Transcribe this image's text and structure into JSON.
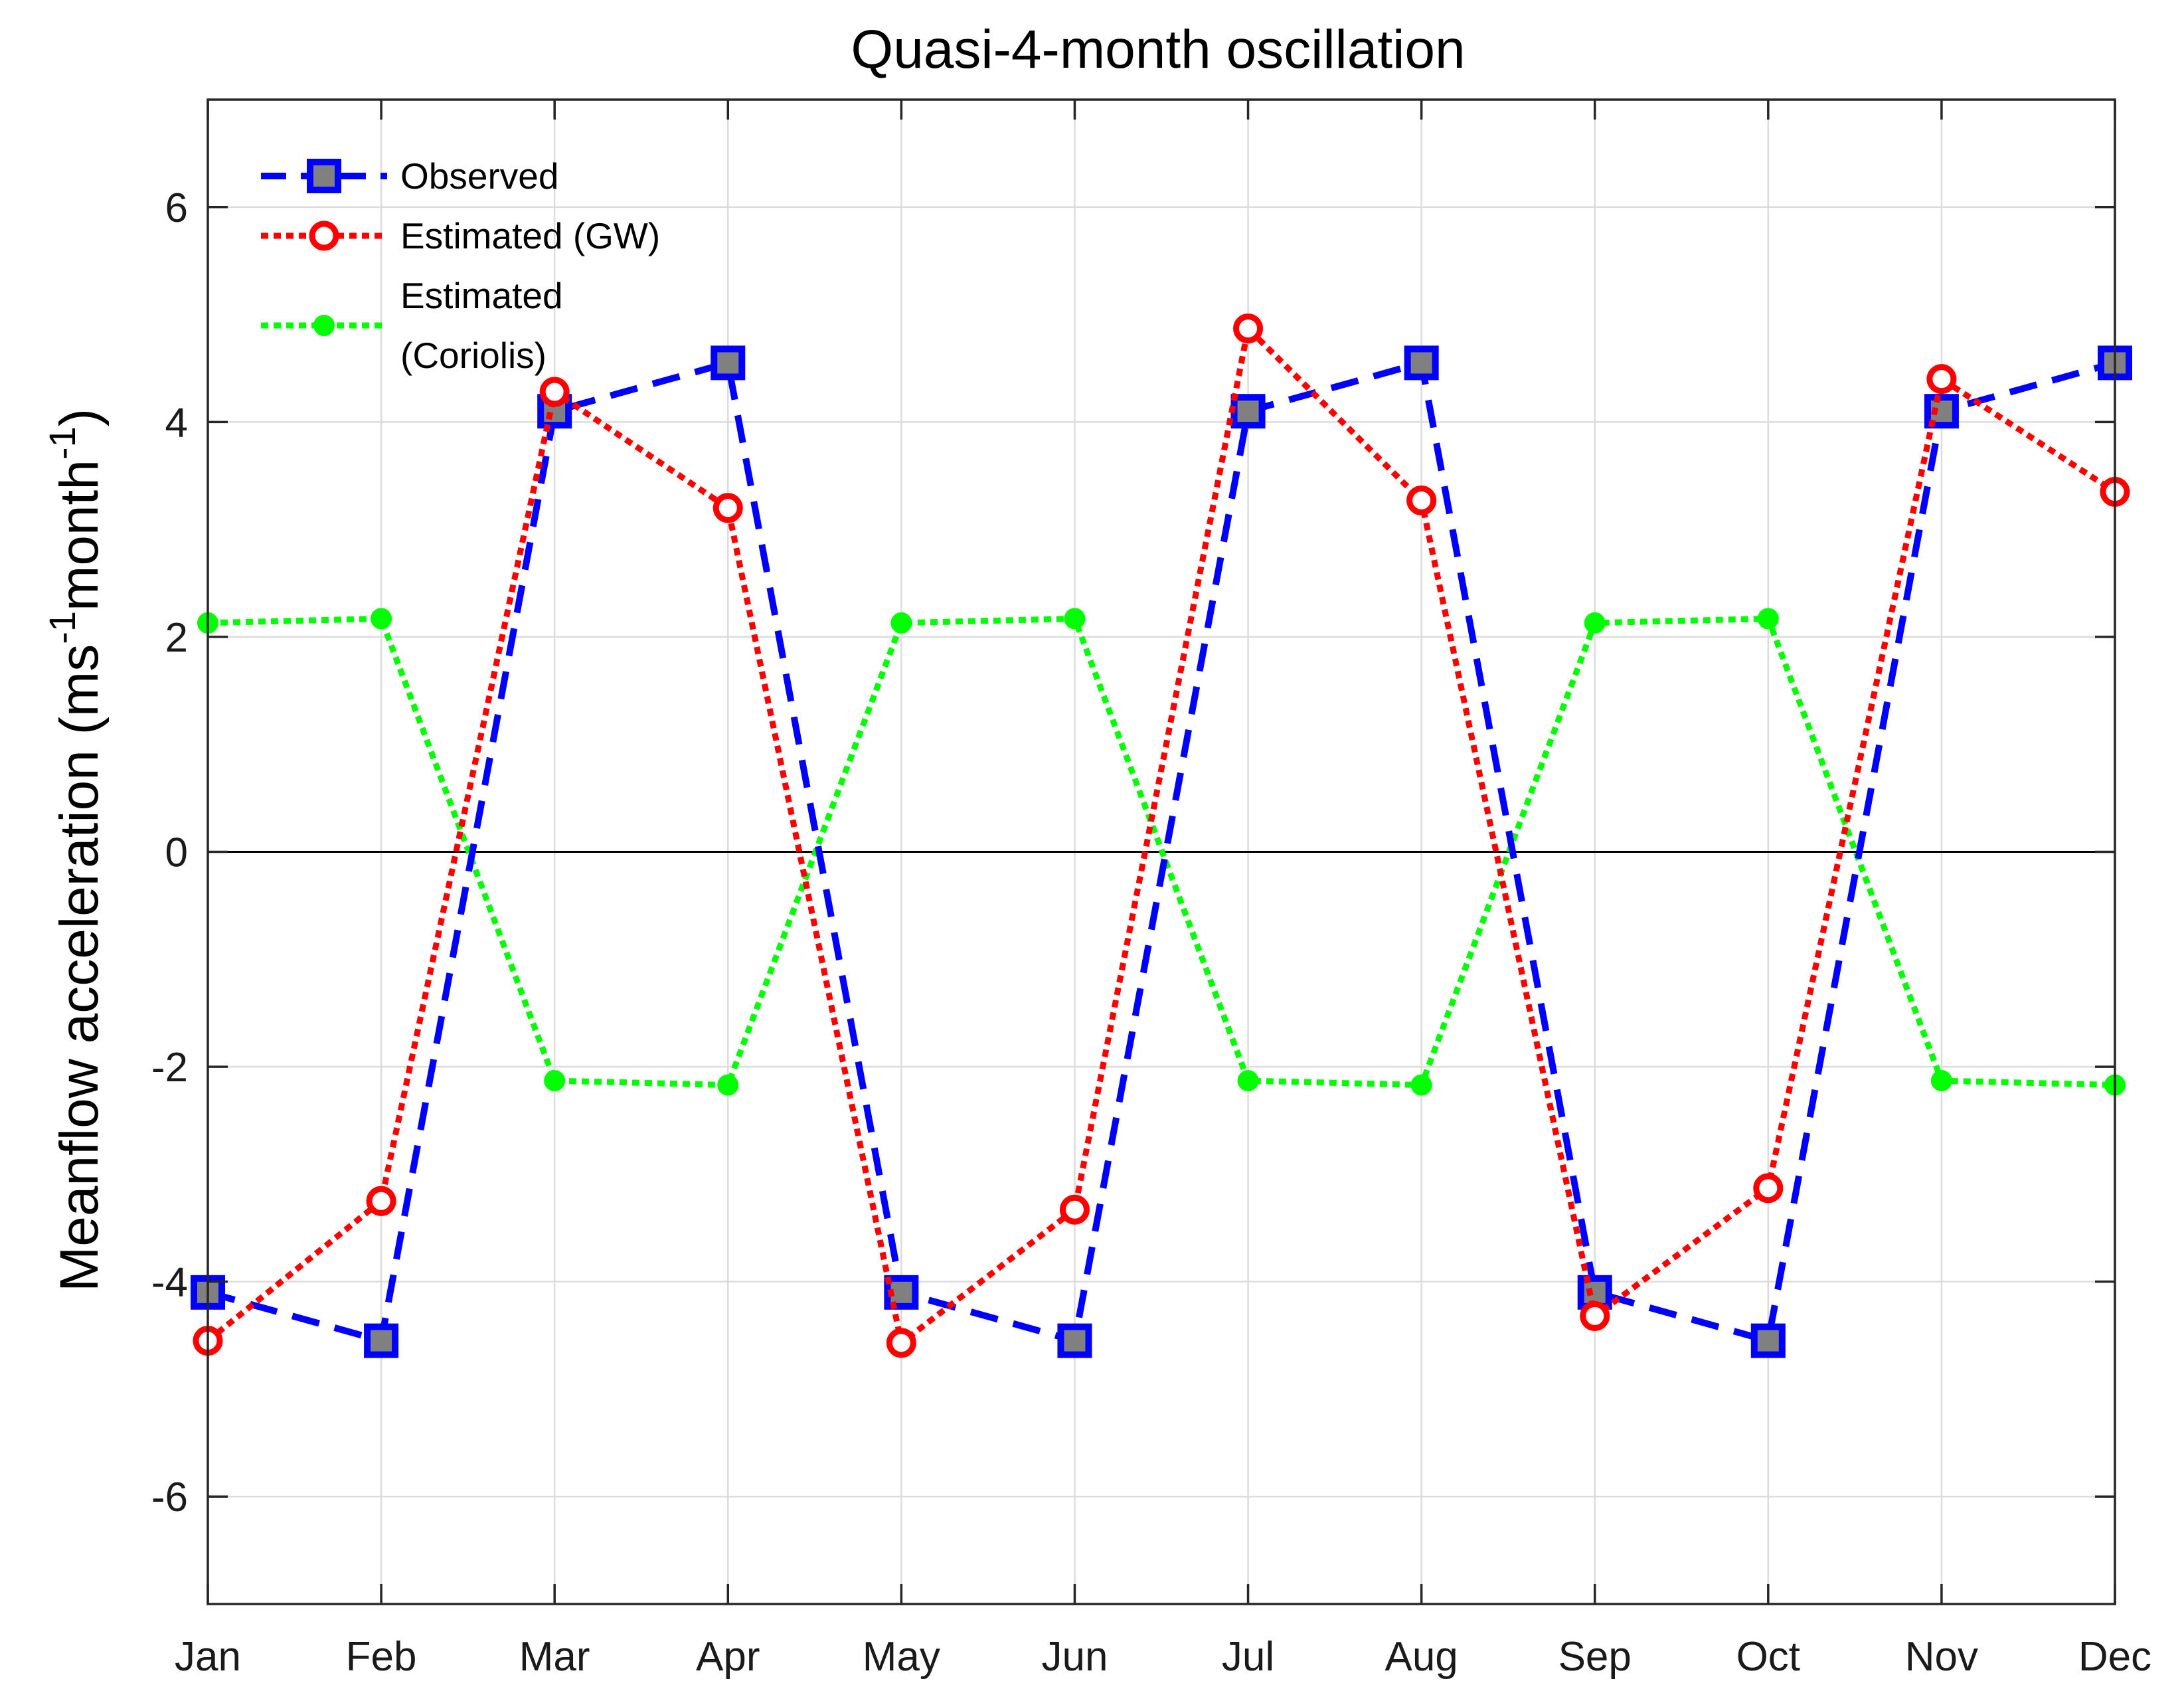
{
  "chart_data": {
    "type": "line",
    "title": "Quasi-4-month oscillation",
    "xlabel": "",
    "ylabel": {
      "main": "Meanflow acceleration (ms",
      "sup1": "-1",
      "mid": "month",
      "sup2": "-1",
      "end": ")"
    },
    "categories": [
      "Jan",
      "Feb",
      "Mar",
      "Apr",
      "May",
      "Jun",
      "Jul",
      "Aug",
      "Sep",
      "Oct",
      "Nov",
      "Dec"
    ],
    "ylim": [
      -7,
      7
    ],
    "yticks": [
      -6,
      -4,
      -2,
      0,
      2,
      4,
      6
    ],
    "ytick_labels": [
      "-6",
      "-4",
      "-2",
      "0",
      "2",
      "4",
      "6"
    ],
    "grid": true,
    "zero_line": true,
    "legend_position": "top-left",
    "series": [
      {
        "name": "Observed",
        "legend_lines": [
          "Observed"
        ],
        "color": "#0000ff",
        "marker": "square",
        "marker_fill": "#808080",
        "line_style": "dashed",
        "values": [
          -4.1,
          -4.55,
          4.1,
          4.55,
          -4.1,
          -4.55,
          4.1,
          4.55,
          -4.1,
          -4.55,
          4.1,
          4.55
        ]
      },
      {
        "name": "Estimated (GW)",
        "legend_lines": [
          "Estimated (GW)"
        ],
        "color": "#ff0000",
        "marker": "circle",
        "marker_fill": "#ffffff",
        "line_style": "dotted",
        "values": [
          -4.55,
          -3.25,
          4.28,
          3.2,
          -4.57,
          -3.33,
          4.87,
          3.27,
          -4.32,
          -3.13,
          4.4,
          3.35
        ]
      },
      {
        "name": "Estimated (Coriolis)",
        "legend_lines": [
          "Estimated",
          "(Coriolis)"
        ],
        "color": "#00ff00",
        "marker": "dot",
        "marker_fill": "#00ff00",
        "line_style": "dotted",
        "values": [
          2.13,
          2.17,
          -2.13,
          -2.17,
          2.13,
          2.17,
          -2.13,
          -2.17,
          2.13,
          2.17,
          -2.13,
          -2.17
        ]
      }
    ]
  }
}
